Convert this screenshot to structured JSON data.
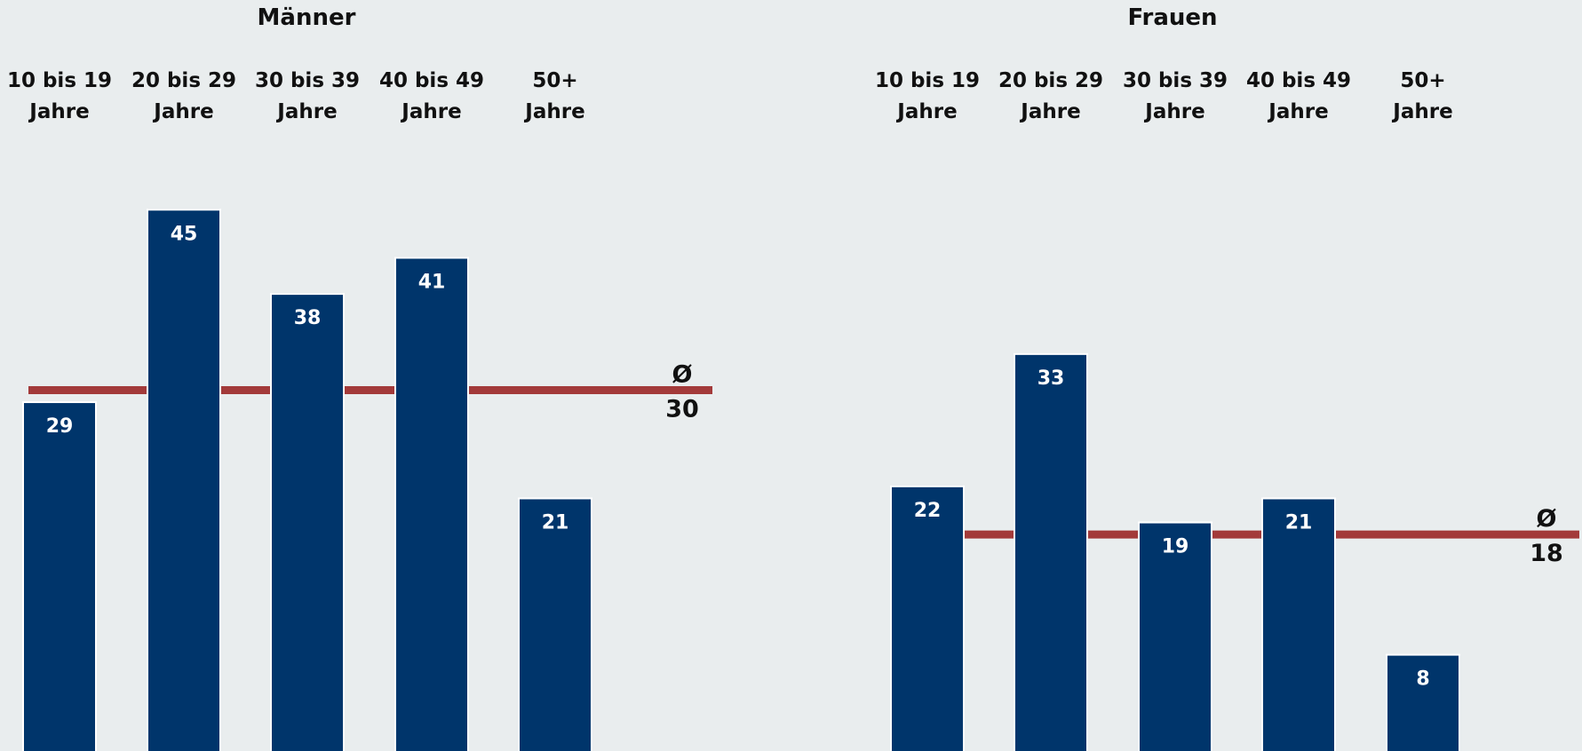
{
  "chart_data": [
    {
      "type": "bar",
      "title": "Männer",
      "categories": [
        [
          "10 bis 19",
          "Jahre"
        ],
        [
          "20 bis 29",
          "Jahre"
        ],
        [
          "30 bis 39",
          "Jahre"
        ],
        [
          "40 bis 49",
          "Jahre"
        ],
        [
          "50+",
          "Jahre"
        ]
      ],
      "values": [
        29,
        45,
        38,
        41,
        21
      ],
      "average": {
        "symbol": "Ø",
        "value": 30
      },
      "colors": {
        "bar": "#00356b",
        "average": "#a33a3a"
      },
      "ylim": [
        0,
        62
      ]
    },
    {
      "type": "bar",
      "title": "Frauen",
      "categories": [
        [
          "10 bis 19",
          "Jahre"
        ],
        [
          "20 bis 29",
          "Jahre"
        ],
        [
          "30 bis 39",
          "Jahre"
        ],
        [
          "40 bis 49",
          "Jahre"
        ],
        [
          "50+",
          "Jahre"
        ]
      ],
      "values": [
        22,
        33,
        19,
        21,
        8
      ],
      "average": {
        "symbol": "Ø",
        "value": 18
      },
      "colors": {
        "bar": "#00356b",
        "average": "#a33a3a"
      },
      "ylim": [
        0,
        62
      ]
    }
  ]
}
